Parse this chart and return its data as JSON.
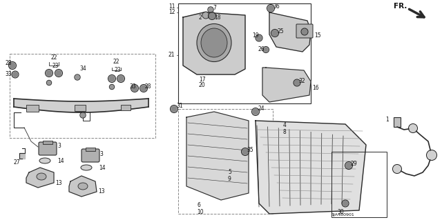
{
  "bg_color": "#ffffff",
  "fig_width": 6.4,
  "fig_height": 3.19,
  "dpi": 100,
  "diagram_code": "SJA4B0901",
  "line_color": "#2a2a2a",
  "text_color": "#111111"
}
